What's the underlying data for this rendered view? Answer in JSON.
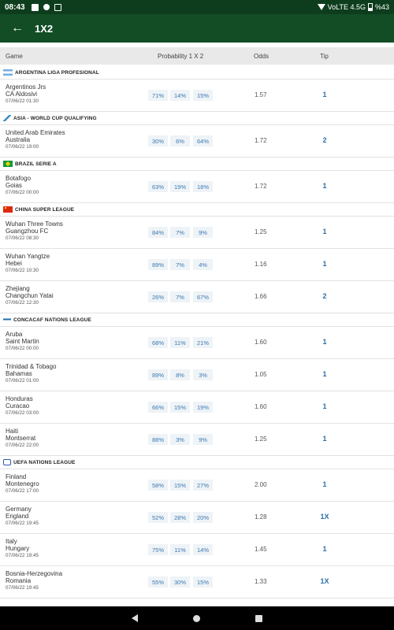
{
  "status": {
    "time": "08:43",
    "network": "VoLTE 4.5G",
    "battery": "%43"
  },
  "appbar": {
    "title": "1X2"
  },
  "columns": {
    "game": "Game",
    "probability": "Probability 1 X 2",
    "odds": "Odds",
    "tip": "Tip"
  },
  "leagues": [
    {
      "name": "ARGENTINA LIGA PROFESIONAL",
      "flag": "ar",
      "matches": [
        {
          "home": "Argentinos Jrs",
          "away": "CA Aldosivi",
          "date": "07/06/22 01:30",
          "p1": "71%",
          "px": "14%",
          "p2": "15%",
          "odds": "1.57",
          "tip": "1"
        }
      ]
    },
    {
      "name": "ASIA - WORLD CUP QUALIFYING",
      "flag": "asia",
      "matches": [
        {
          "home": "United Arab Emirates",
          "away": "Australia",
          "date": "07/06/22 19:00",
          "p1": "30%",
          "px": "6%",
          "p2": "64%",
          "odds": "1.72",
          "tip": "2"
        }
      ]
    },
    {
      "name": "BRAZIL SERIE A",
      "flag": "br",
      "matches": [
        {
          "home": "Botafogo",
          "away": "Goias",
          "date": "07/06/22 00:00",
          "p1": "63%",
          "px": "19%",
          "p2": "18%",
          "odds": "1.72",
          "tip": "1"
        }
      ]
    },
    {
      "name": "CHINA SUPER LEAGUE",
      "flag": "cn",
      "matches": [
        {
          "home": "Wuhan Three Towns",
          "away": "Guangzhou FC",
          "date": "07/06/22 08:30",
          "p1": "84%",
          "px": "7%",
          "p2": "9%",
          "odds": "1.25",
          "tip": "1"
        },
        {
          "home": "Wuhan Yangtze",
          "away": "Hebei",
          "date": "07/06/22 10:30",
          "p1": "89%",
          "px": "7%",
          "p2": "4%",
          "odds": "1.16",
          "tip": "1"
        },
        {
          "home": "Zhejiang",
          "away": "Changchun Yatai",
          "date": "07/06/22 12:30",
          "p1": "26%",
          "px": "7%",
          "p2": "67%",
          "odds": "1.66",
          "tip": "2"
        }
      ]
    },
    {
      "name": "CONCACAF NATIONS LEAGUE",
      "flag": "conc",
      "matches": [
        {
          "home": "Aruba",
          "away": "Saint Martin",
          "date": "07/06/22 00:00",
          "p1": "68%",
          "px": "11%",
          "p2": "21%",
          "odds": "1.60",
          "tip": "1"
        },
        {
          "home": "Trinidad & Tobago",
          "away": "Bahamas",
          "date": "07/06/22 01:00",
          "p1": "89%",
          "px": "8%",
          "p2": "3%",
          "odds": "1.05",
          "tip": "1"
        },
        {
          "home": "Honduras",
          "away": "Curacao",
          "date": "07/06/22 03:00",
          "p1": "66%",
          "px": "15%",
          "p2": "19%",
          "odds": "1.60",
          "tip": "1"
        },
        {
          "home": "Haiti",
          "away": "Montserrat",
          "date": "07/06/22 22:00",
          "p1": "88%",
          "px": "3%",
          "p2": "9%",
          "odds": "1.25",
          "tip": "1"
        }
      ]
    },
    {
      "name": "UEFA NATIONS LEAGUE",
      "flag": "uefa",
      "matches": [
        {
          "home": "Finland",
          "away": "Montenegro",
          "date": "07/06/22 17:00",
          "p1": "58%",
          "px": "15%",
          "p2": "27%",
          "odds": "2.00",
          "tip": "1"
        },
        {
          "home": "Germany",
          "away": "England",
          "date": "07/06/22 19:45",
          "p1": "52%",
          "px": "28%",
          "p2": "20%",
          "odds": "1.28",
          "tip": "1X"
        },
        {
          "home": "Italy",
          "away": "Hungary",
          "date": "07/06/22 19:45",
          "p1": "75%",
          "px": "11%",
          "p2": "14%",
          "odds": "1.45",
          "tip": "1"
        },
        {
          "home": "Bosnia-Herzegovina",
          "away": "Romania",
          "date": "07/06/22 19:45",
          "p1": "55%",
          "px": "30%",
          "p2": "15%",
          "odds": "1.33",
          "tip": "1X"
        }
      ]
    }
  ],
  "colors": {
    "appbar": "#124d26",
    "statusbar": "#0d3d1d",
    "accent": "#2a6fa8"
  }
}
